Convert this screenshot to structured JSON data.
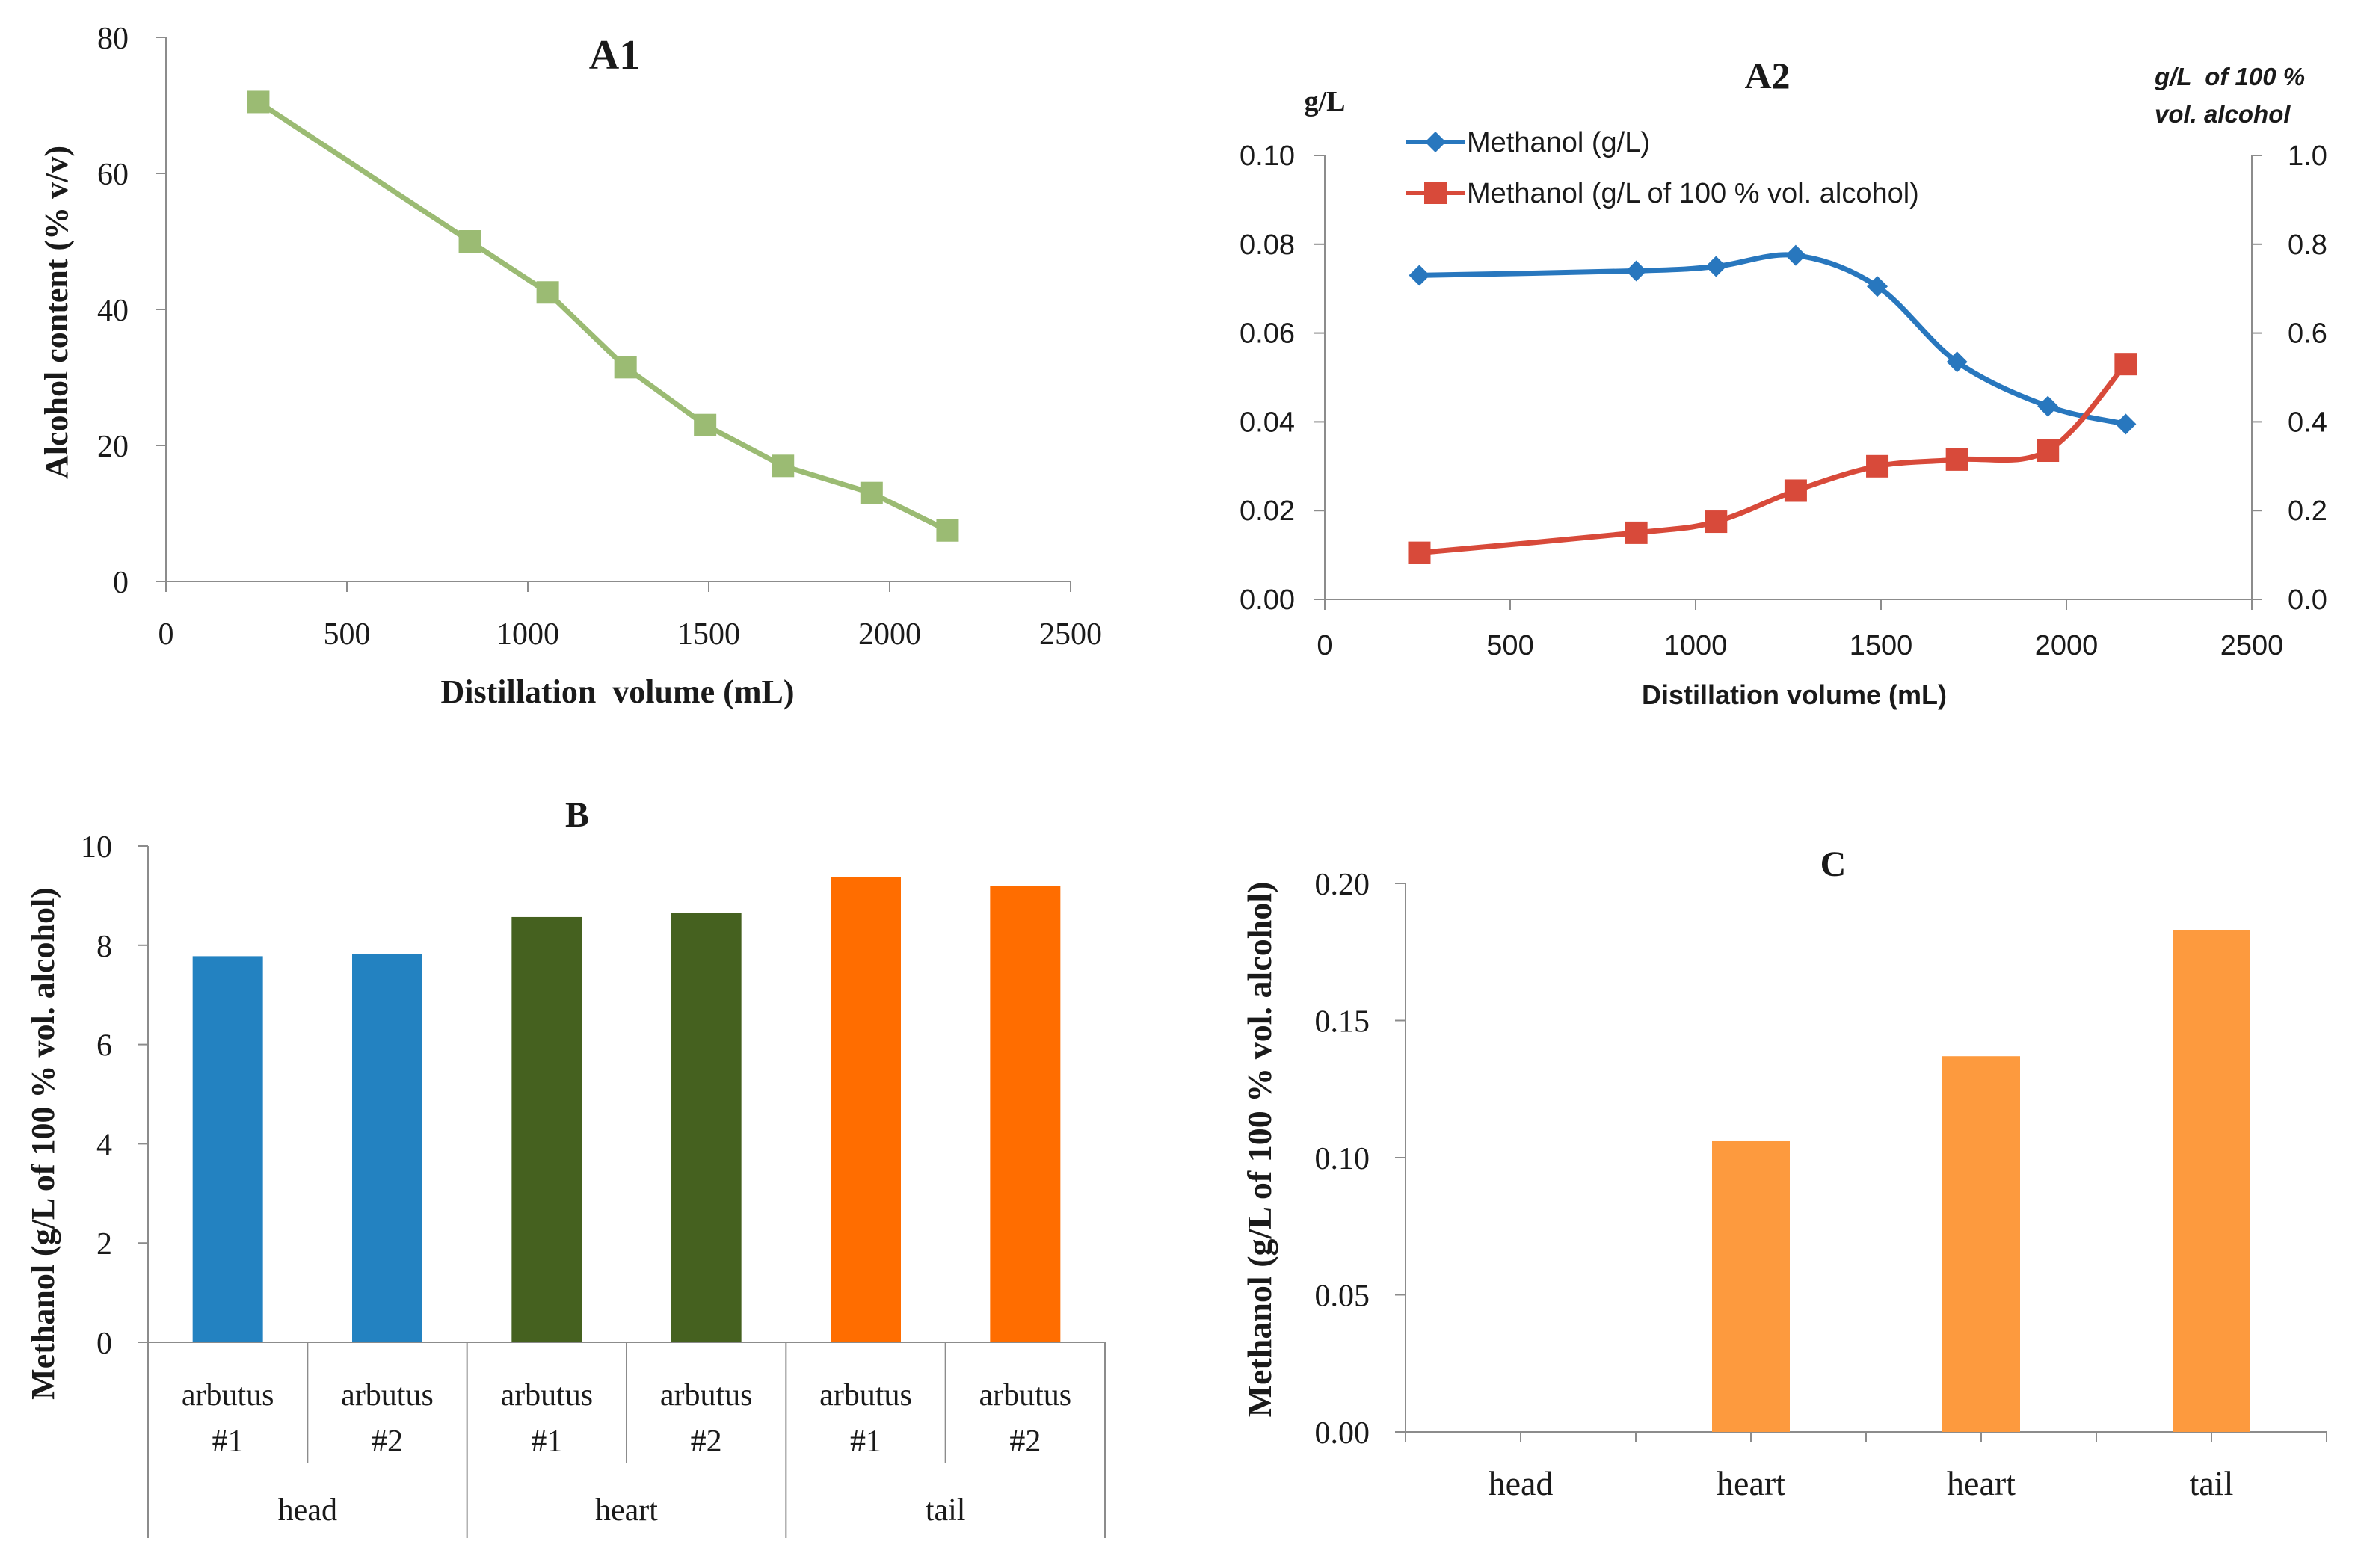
{
  "colors": {
    "a1_line": "#9bbb73",
    "methanol": "#2877be",
    "methanol_alc": "#d84a3a",
    "b_head": "#2382c1",
    "b_heart": "#45611f",
    "b_tail": "#ff6d00",
    "c_bar": "#fd9a3e",
    "axis": "#8c8c8c",
    "text": "#1a1a1a"
  },
  "chart_data": [
    {
      "id": "A1",
      "type": "line",
      "title": "A1",
      "xlabel": "Distillation  volume (mL)",
      "ylabel": "Alcohol content (% v/v)",
      "x": [
        255,
        840,
        1055,
        1270,
        1490,
        1705,
        1950,
        2160
      ],
      "values": [
        70.5,
        50,
        42.5,
        31.5,
        23,
        17,
        13,
        7.5
      ],
      "xlim": [
        0,
        2500
      ],
      "ylim": [
        0,
        80
      ],
      "xticks": [
        "0",
        "500",
        "1000",
        "1500",
        "2000",
        "2500"
      ],
      "yticks": [
        "0",
        "20",
        "40",
        "60",
        "80"
      ],
      "marker": "square"
    },
    {
      "id": "A2",
      "type": "line",
      "title": "A2",
      "xlabel": "Distillation volume (mL)",
      "ylabel": "g/L",
      "ylabel_right_line1": "g/L  of 100 %",
      "ylabel_right_line2": "vol. alcohol",
      "xlim": [
        0,
        2500
      ],
      "ylim": [
        0,
        0.1
      ],
      "ylim_right": [
        0,
        1.0
      ],
      "xticks": [
        "0",
        "500",
        "1000",
        "1500",
        "2000",
        "2500"
      ],
      "yticks": [
        "0.00",
        "0.02",
        "0.04",
        "0.06",
        "0.08",
        "0.10"
      ],
      "yticks_right": [
        "0.0",
        "0.2",
        "0.4",
        "0.6",
        "0.8",
        "1.0"
      ],
      "series": [
        {
          "name": "Methanol (g/L)",
          "axis": "left",
          "marker": "diamond",
          "x": [
            255,
            840,
            1055,
            1270,
            1490,
            1705,
            1950,
            2160
          ],
          "values": [
            0.073,
            0.074,
            0.075,
            0.0775,
            0.0705,
            0.0535,
            0.0435,
            0.0395
          ]
        },
        {
          "name": "Methanol (g/L of 100 % vol. alcohol)",
          "axis": "right",
          "marker": "square",
          "x": [
            255,
            840,
            1055,
            1270,
            1490,
            1705,
            1950,
            2160
          ],
          "values": [
            0.105,
            0.15,
            0.175,
            0.245,
            0.3,
            0.315,
            0.335,
            0.53
          ]
        }
      ]
    },
    {
      "id": "B",
      "type": "bar",
      "title": "B",
      "ylabel": "Methanol (g/L of 100 % vol. alcohol)",
      "ylim": [
        0,
        10
      ],
      "yticks": [
        "0",
        "2",
        "4",
        "6",
        "8",
        "10"
      ],
      "categories": [
        {
          "line1": "arbutus",
          "line2": "#1",
          "group": "head",
          "value": 7.78
        },
        {
          "line1": "arbutus",
          "line2": "#2",
          "group": "head",
          "value": 7.82
        },
        {
          "line1": "arbutus",
          "line2": "#1",
          "group": "heart",
          "value": 8.57
        },
        {
          "line1": "arbutus",
          "line2": "#2",
          "group": "heart",
          "value": 8.65
        },
        {
          "line1": "arbutus",
          "line2": "#1",
          "group": "tail",
          "value": 9.38
        },
        {
          "line1": "arbutus",
          "line2": "#2",
          "group": "tail",
          "value": 9.2
        }
      ],
      "groups": [
        "head",
        "heart",
        "tail"
      ]
    },
    {
      "id": "C",
      "type": "bar",
      "title": "C",
      "ylabel": "Methanol (g/L of 100 % vol. alcohol)",
      "ylim": [
        0,
        0.2
      ],
      "yticks": [
        "0.00",
        "0.05",
        "0.10",
        "0.15",
        "0.20"
      ],
      "categories": [
        "head",
        "heart",
        "heart",
        "tail"
      ],
      "values": [
        0,
        0.106,
        0.137,
        0.183
      ]
    }
  ]
}
